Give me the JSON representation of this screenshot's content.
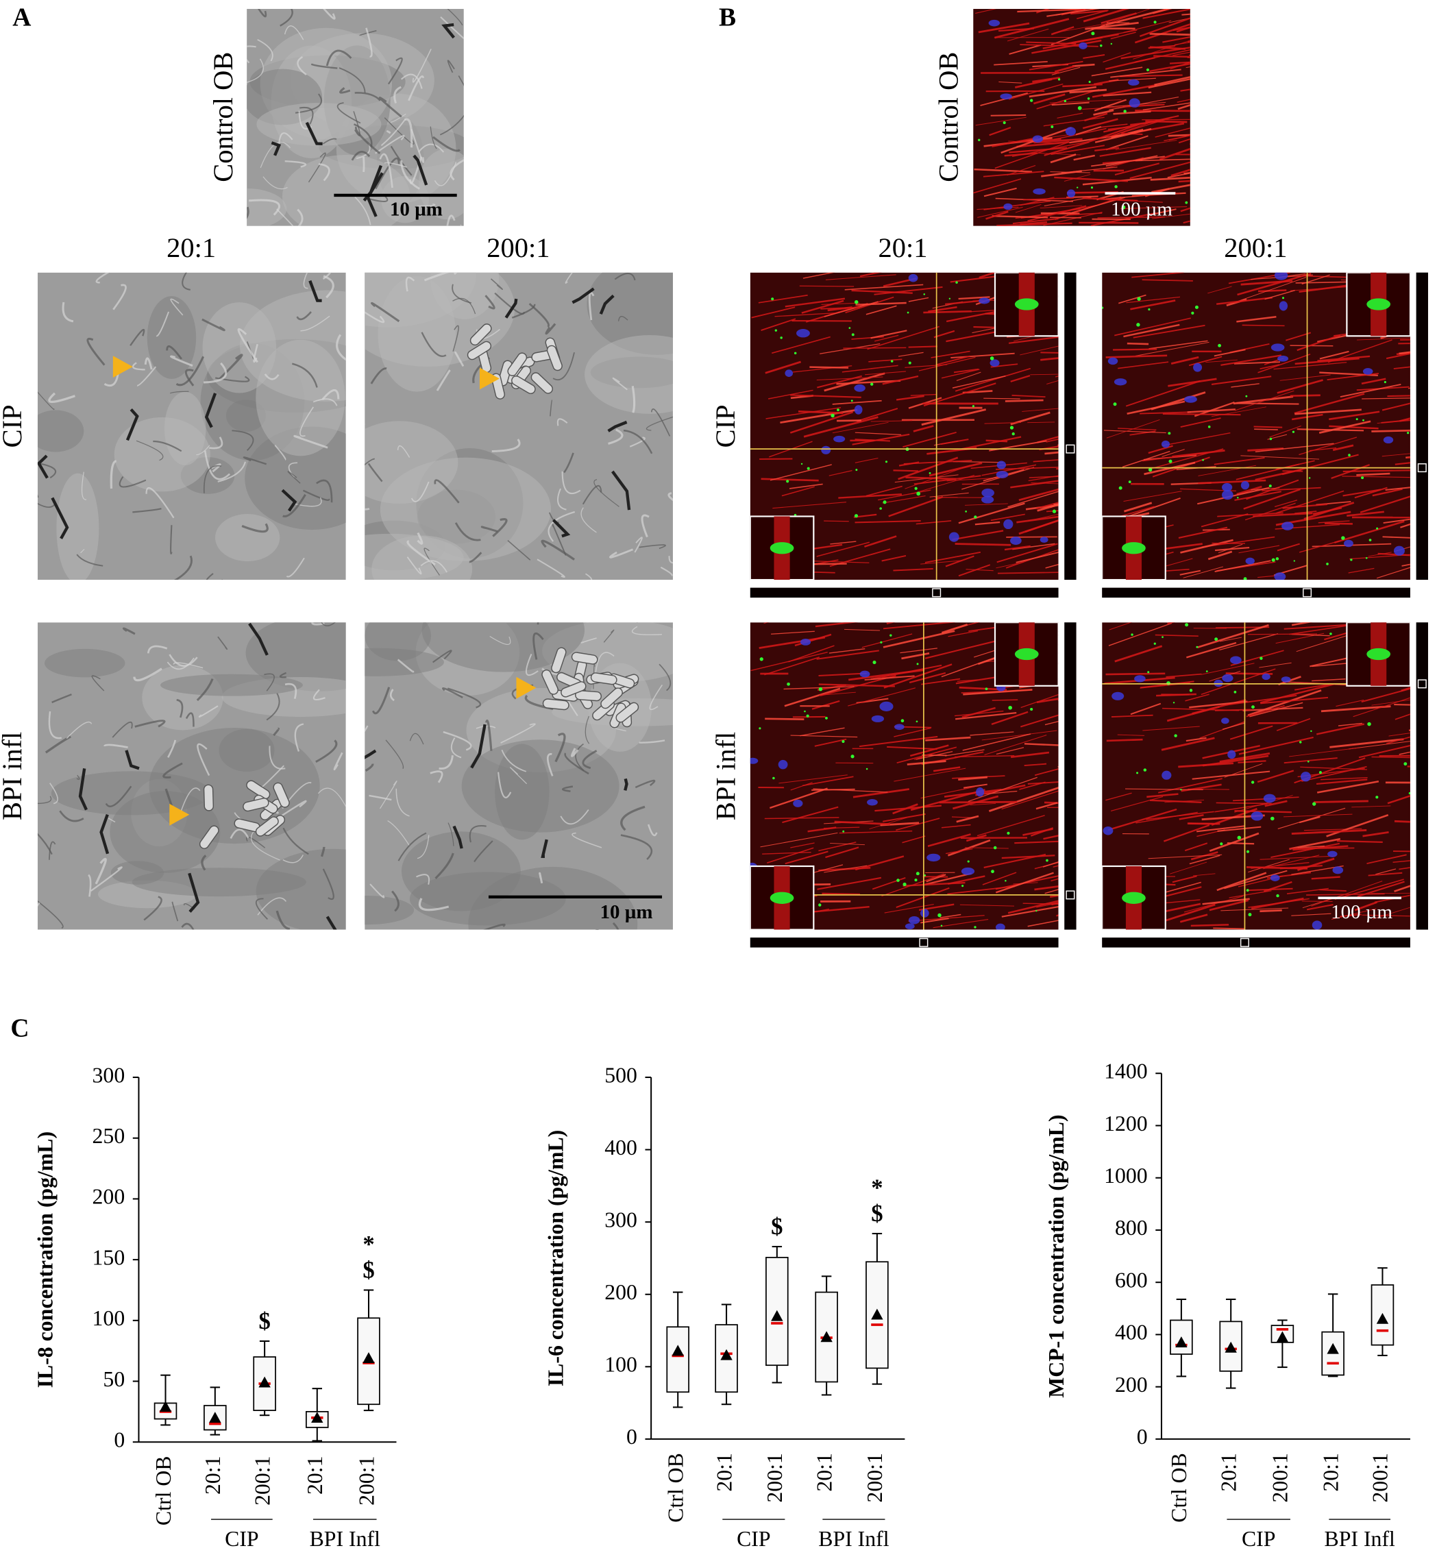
{
  "panels": {
    "a": {
      "label": "A",
      "control_label": "Control OB",
      "col_labels": [
        "20:1",
        "200:1"
      ],
      "row_labels": [
        "CIP",
        "BPI infl"
      ],
      "scale_bars": [
        "10 µm",
        "10 µm"
      ]
    },
    "b": {
      "label": "B",
      "control_label": "Control OB",
      "col_labels": [
        "20:1",
        "200:1"
      ],
      "row_labels": [
        "CIP",
        "BPI infl"
      ],
      "scale_bars": [
        "100 µm",
        "100 µm"
      ]
    },
    "c": {
      "label": "C"
    }
  },
  "chart_data": [
    {
      "type": "box",
      "ylabel": "IL-8 concentration (pg/mL)",
      "ylim": [
        0,
        300
      ],
      "yticks": [
        0,
        50,
        100,
        150,
        200,
        250,
        300
      ],
      "categories": [
        "Ctrl OB",
        "20:1",
        "200:1",
        "20:1",
        "200:1"
      ],
      "group_labels": [
        "CIP",
        "BPI Infl"
      ],
      "median_color": "#e00000",
      "mean_color": "#000000",
      "boxes": [
        {
          "min": 14,
          "q1": 19,
          "median": 25,
          "q3": 32,
          "max": 55,
          "mean": 29
        },
        {
          "min": 6,
          "q1": 10,
          "median": 15,
          "q3": 30,
          "max": 45,
          "mean": 20
        },
        {
          "min": 22,
          "q1": 26,
          "median": 48,
          "q3": 70,
          "max": 83,
          "mean": 49
        },
        {
          "min": 1,
          "q1": 12,
          "median": 20,
          "q3": 25,
          "max": 44,
          "mean": 20
        },
        {
          "min": 26,
          "q1": 31,
          "median": 65,
          "q3": 102,
          "max": 125,
          "mean": 69
        }
      ],
      "annotations": [
        null,
        null,
        [
          "$"
        ],
        null,
        [
          "*",
          "$"
        ]
      ]
    },
    {
      "type": "box",
      "ylabel": "IL-6 concentration (pg/mL)",
      "ylim": [
        0,
        500
      ],
      "yticks": [
        0,
        100,
        200,
        300,
        400,
        500
      ],
      "categories": [
        "Ctrl OB",
        "20:1",
        "200:1",
        "20:1",
        "200:1"
      ],
      "group_labels": [
        "CIP",
        "BPI Infl"
      ],
      "median_color": "#e00000",
      "mean_color": "#000000",
      "boxes": [
        {
          "min": 44,
          "q1": 65,
          "median": 115,
          "q3": 155,
          "max": 203,
          "mean": 122
        },
        {
          "min": 48,
          "q1": 65,
          "median": 118,
          "q3": 158,
          "max": 186,
          "mean": 116
        },
        {
          "min": 78,
          "q1": 102,
          "median": 160,
          "q3": 251,
          "max": 266,
          "mean": 170
        },
        {
          "min": 61,
          "q1": 79,
          "median": 140,
          "q3": 203,
          "max": 225,
          "mean": 141
        },
        {
          "min": 76,
          "q1": 98,
          "median": 158,
          "q3": 245,
          "max": 284,
          "mean": 172
        }
      ],
      "annotations": [
        null,
        null,
        [
          "$"
        ],
        null,
        [
          "*",
          "$"
        ]
      ]
    },
    {
      "type": "box",
      "ylabel": "MCP-1 concentration (pg/mL)",
      "ylim": [
        0,
        1400
      ],
      "yticks": [
        0,
        200,
        400,
        600,
        800,
        1000,
        1200,
        1400
      ],
      "categories": [
        "Ctrl OB",
        "20:1",
        "200:1",
        "20:1",
        "200:1"
      ],
      "group_labels": [
        "CIP",
        "BPI Infl"
      ],
      "median_color": "#e00000",
      "mean_color": "#000000",
      "boxes": [
        {
          "min": 240,
          "q1": 325,
          "median": 360,
          "q3": 455,
          "max": 535,
          "mean": 370
        },
        {
          "min": 195,
          "q1": 260,
          "median": 345,
          "q3": 450,
          "max": 535,
          "mean": 350
        },
        {
          "min": 275,
          "q1": 370,
          "median": 420,
          "q3": 435,
          "max": 455,
          "mean": 390
        },
        {
          "min": 240,
          "q1": 245,
          "median": 290,
          "q3": 410,
          "max": 555,
          "mean": 345
        },
        {
          "min": 320,
          "q1": 360,
          "median": 415,
          "q3": 590,
          "max": 655,
          "mean": 460
        }
      ],
      "annotations": [
        null,
        null,
        null,
        null,
        null
      ]
    }
  ]
}
